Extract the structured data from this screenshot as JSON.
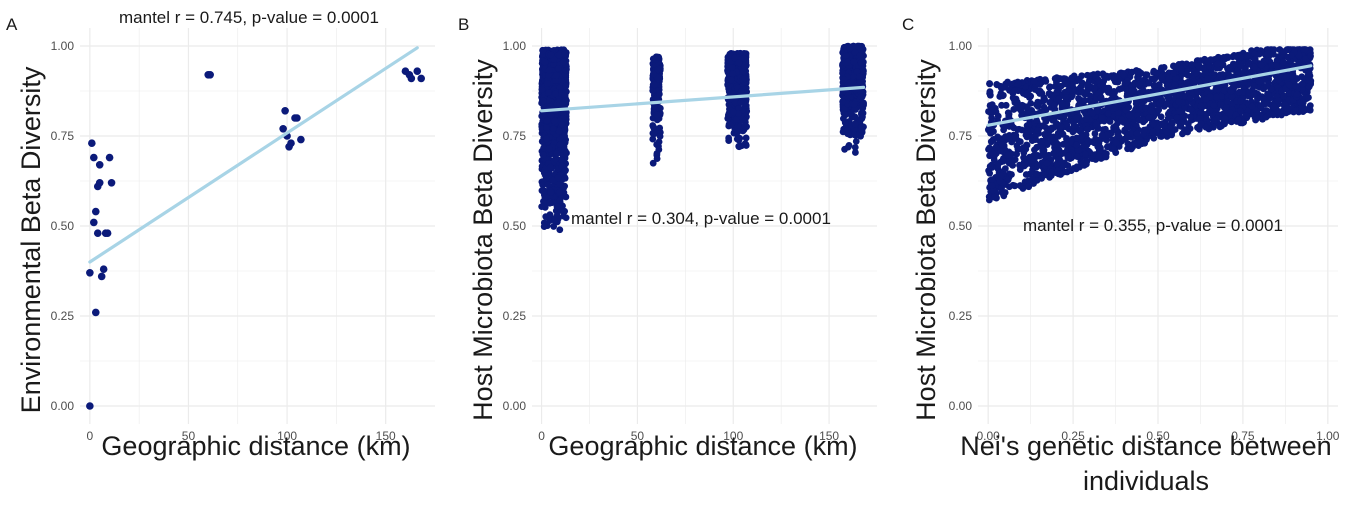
{
  "colors": {
    "points": "#0b1a7a",
    "fit_line": "#a8d4e6",
    "grid": "#ebebeb"
  },
  "chart_data": [
    {
      "type": "scatter",
      "tag": "A",
      "xlabel": "Geographic distance (km)",
      "ylabel": "Environmental Beta Diversity",
      "xticks": [
        "0",
        "50",
        "100",
        "150"
      ],
      "yticks": [
        "0.00",
        "0.25",
        "0.50",
        "0.75",
        "1.00"
      ],
      "xlim": [
        -5,
        175
      ],
      "ylim": [
        -0.05,
        1.05
      ],
      "annotation": "mantel r = 0.745, p-value = 0.0001",
      "fit_line": {
        "x": [
          0,
          166
        ],
        "y": [
          0.4,
          0.995
        ]
      },
      "points": [
        [
          0,
          0.0
        ],
        [
          0,
          0.37
        ],
        [
          1,
          0.73
        ],
        [
          2,
          0.69
        ],
        [
          2,
          0.51
        ],
        [
          3,
          0.54
        ],
        [
          3,
          0.26
        ],
        [
          4,
          0.61
        ],
        [
          4,
          0.48
        ],
        [
          5,
          0.62
        ],
        [
          5,
          0.67
        ],
        [
          6,
          0.36
        ],
        [
          7,
          0.38
        ],
        [
          8,
          0.48
        ],
        [
          9,
          0.48
        ],
        [
          10,
          0.69
        ],
        [
          11,
          0.62
        ],
        [
          60,
          0.92
        ],
        [
          61,
          0.92
        ],
        [
          98,
          0.77
        ],
        [
          99,
          0.82
        ],
        [
          100,
          0.75
        ],
        [
          101,
          0.72
        ],
        [
          102,
          0.73
        ],
        [
          104,
          0.8
        ],
        [
          105,
          0.8
        ],
        [
          107,
          0.74
        ],
        [
          160,
          0.93
        ],
        [
          162,
          0.92
        ],
        [
          163,
          0.91
        ],
        [
          166,
          0.93
        ],
        [
          168,
          0.91
        ]
      ]
    },
    {
      "type": "scatter",
      "tag": "B",
      "xlabel": "Geographic distance (km)",
      "ylabel": "Host Microbiota Beta Diversity",
      "xticks": [
        "0",
        "50",
        "100",
        "150"
      ],
      "yticks": [
        "0.00",
        "0.25",
        "0.50",
        "0.75",
        "1.00"
      ],
      "xlim": [
        -5,
        175
      ],
      "ylim": [
        -0.05,
        1.05
      ],
      "annotation": "mantel r = 0.304, p-value = 0.0001",
      "fit_line": {
        "x": [
          0,
          168
        ],
        "y": [
          0.82,
          0.885
        ]
      },
      "point_bands": [
        {
          "x_range": [
            0,
            13
          ],
          "y_range": [
            0.47,
            0.99
          ],
          "count": 900
        },
        {
          "x_range": [
            58,
            62
          ],
          "y_range": [
            0.65,
            0.97
          ],
          "count": 180
        },
        {
          "x_range": [
            97,
            107
          ],
          "y_range": [
            0.7,
            0.98
          ],
          "count": 500
        },
        {
          "x_range": [
            157,
            168
          ],
          "y_range": [
            0.69,
            1.0
          ],
          "count": 500
        }
      ]
    },
    {
      "type": "scatter",
      "tag": "C",
      "xlabel": "Nei's genetic distance between individuals",
      "ylabel": "Host Microbiota Beta Diversity",
      "xticks": [
        "0.00",
        "0.25",
        "0.50",
        "0.75",
        "1.00"
      ],
      "yticks": [
        "0.00",
        "0.25",
        "0.50",
        "0.75",
        "1.00"
      ],
      "xlim": [
        -0.03,
        1.03
      ],
      "ylim": [
        -0.05,
        1.05
      ],
      "annotation": "mantel r = 0.355, p-value = 0.0001",
      "fit_line": {
        "x": [
          0.0,
          0.95
        ],
        "y": [
          0.78,
          0.945
        ]
      },
      "point_bands": [
        {
          "x_range": [
            0.0,
            0.95
          ],
          "y_range": [
            0.47,
            0.99
          ],
          "count": 2200
        }
      ]
    }
  ]
}
